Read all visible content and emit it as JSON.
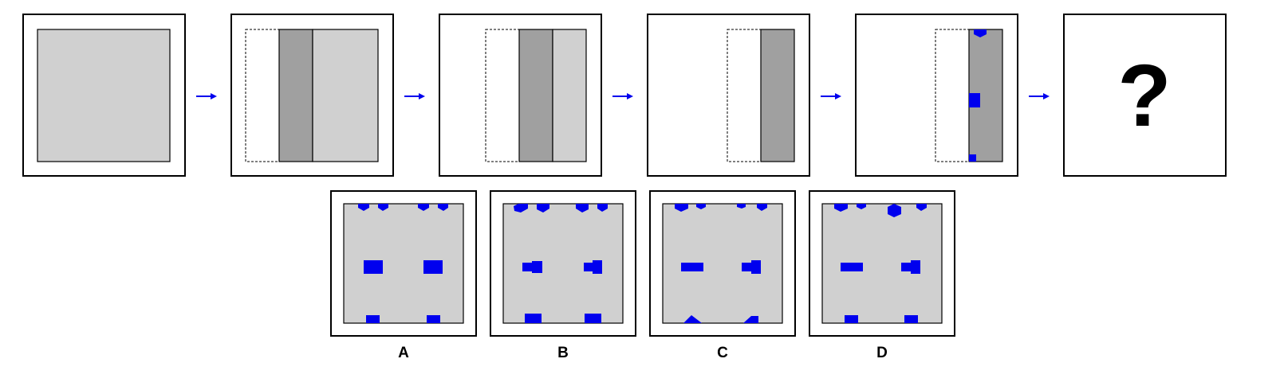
{
  "puzzle": {
    "sequence_question_mark": "?",
    "options": [
      {
        "label": "A"
      },
      {
        "label": "B"
      },
      {
        "label": "C"
      },
      {
        "label": "D"
      }
    ]
  },
  "colors": {
    "panel_gray": "#d0d0d0",
    "fold_gray": "#a0a0a0",
    "hole_blue": "#0000ee",
    "arrow_blue": "#0000ee",
    "border": "#000000"
  }
}
